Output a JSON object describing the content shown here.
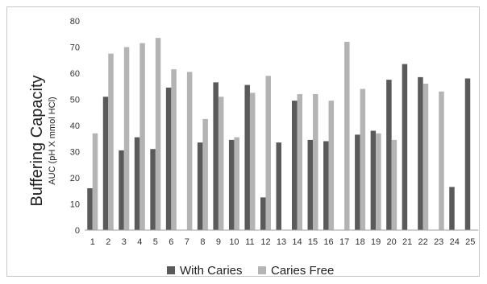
{
  "chart_data": {
    "type": "bar",
    "title": "",
    "xlabel": "",
    "ylabel": "Buffering Capacity",
    "ylabel_sub": "AUC (pH X mmol HCl)",
    "ylim": [
      0,
      80
    ],
    "yticks": [
      0,
      10,
      20,
      30,
      40,
      50,
      60,
      70,
      80
    ],
    "grid": false,
    "legend_position": "bottom",
    "categories": [
      "1",
      "2",
      "3",
      "4",
      "5",
      "6",
      "7",
      "8",
      "9",
      "10",
      "11",
      "12",
      "13",
      "14",
      "15",
      "16",
      "17",
      "18",
      "19",
      "20",
      "21",
      "22",
      "23",
      "24",
      "25"
    ],
    "series": [
      {
        "name": "With Caries",
        "color": "#5a5a5a",
        "values": [
          16,
          51,
          30.5,
          35.5,
          31,
          54.5,
          null,
          33.5,
          56.5,
          34.5,
          55.5,
          12.5,
          33.5,
          49.5,
          34.5,
          34,
          null,
          36.5,
          38,
          57.5,
          63.5,
          58.5,
          null,
          16.5,
          58
        ]
      },
      {
        "name": "Caries Free",
        "color": "#b4b4b4",
        "values": [
          37,
          67.5,
          70,
          71.5,
          73.5,
          61.5,
          60.5,
          42.5,
          51,
          35.5,
          52.5,
          59,
          null,
          52,
          52,
          49.5,
          72,
          54,
          37,
          34.5,
          null,
          56,
          53,
          null,
          null
        ]
      }
    ]
  }
}
